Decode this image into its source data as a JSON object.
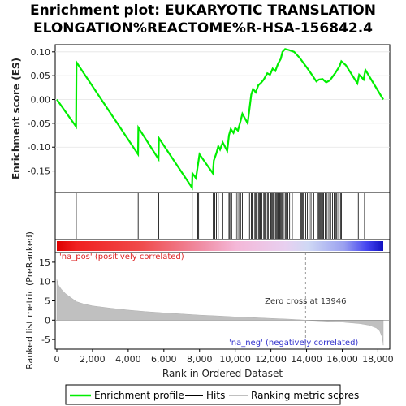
{
  "title_line1": "Enrichment plot: EUKARYOTIC TRANSLATION",
  "title_line2": "ELONGATION%REACTOME%R-HSA-156842.4",
  "chart_data": {
    "type": "line",
    "top_panel": {
      "ylabel": "Enrichment score (ES)",
      "ylim": [
        -0.195,
        0.115
      ],
      "yticks": [
        0.1,
        0.05,
        0.0,
        -0.05,
        -0.1,
        -0.15
      ],
      "ytick_labels": [
        "0.10",
        "0.05",
        "0.00",
        "-0.05",
        "-0.10",
        "-0.15"
      ],
      "series_color": "#00ee00",
      "es_curve": [
        [
          0,
          0.0
        ],
        [
          1080,
          -0.057
        ],
        [
          1100,
          0.078
        ],
        [
          4550,
          -0.115
        ],
        [
          4570,
          -0.059
        ],
        [
          5700,
          -0.125
        ],
        [
          5720,
          -0.081
        ],
        [
          7580,
          -0.185
        ],
        [
          7600,
          -0.155
        ],
        [
          7800,
          -0.165
        ],
        [
          7900,
          -0.14
        ],
        [
          8000,
          -0.115
        ],
        [
          8750,
          -0.155
        ],
        [
          8800,
          -0.128
        ],
        [
          8950,
          -0.112
        ],
        [
          9050,
          -0.098
        ],
        [
          9150,
          -0.105
        ],
        [
          9300,
          -0.09
        ],
        [
          9550,
          -0.108
        ],
        [
          9650,
          -0.075
        ],
        [
          9750,
          -0.062
        ],
        [
          9900,
          -0.07
        ],
        [
          10000,
          -0.06
        ],
        [
          10150,
          -0.065
        ],
        [
          10300,
          -0.045
        ],
        [
          10400,
          -0.03
        ],
        [
          10700,
          -0.05
        ],
        [
          10800,
          -0.02
        ],
        [
          10900,
          0.01
        ],
        [
          11000,
          0.022
        ],
        [
          11150,
          0.015
        ],
        [
          11300,
          0.03
        ],
        [
          11450,
          0.035
        ],
        [
          11600,
          0.042
        ],
        [
          11800,
          0.055
        ],
        [
          11950,
          0.052
        ],
        [
          12100,
          0.065
        ],
        [
          12250,
          0.06
        ],
        [
          12400,
          0.075
        ],
        [
          12550,
          0.085
        ],
        [
          12650,
          0.1
        ],
        [
          12800,
          0.106
        ],
        [
          13000,
          0.104
        ],
        [
          13300,
          0.1
        ],
        [
          13600,
          0.088
        ],
        [
          14000,
          0.068
        ],
        [
          14300,
          0.052
        ],
        [
          14550,
          0.038
        ],
        [
          14700,
          0.042
        ],
        [
          14900,
          0.043
        ],
        [
          15100,
          0.036
        ],
        [
          15300,
          0.04
        ],
        [
          15600,
          0.055
        ],
        [
          15850,
          0.07
        ],
        [
          15950,
          0.08
        ],
        [
          16200,
          0.072
        ],
        [
          16850,
          0.034
        ],
        [
          16950,
          0.052
        ],
        [
          17200,
          0.042
        ],
        [
          17300,
          0.062
        ],
        [
          18300,
          0.0
        ]
      ]
    },
    "hits": [
      1090,
      4560,
      5710,
      7590,
      7900,
      7950,
      8770,
      8850,
      8950,
      9050,
      9300,
      9650,
      9700,
      9800,
      10000,
      10100,
      10200,
      10300,
      10400,
      10800,
      10900,
      10950,
      11000,
      11100,
      11150,
      11200,
      11300,
      11350,
      11400,
      11500,
      11600,
      11650,
      11700,
      11800,
      11850,
      11950,
      12000,
      12050,
      12100,
      12150,
      12250,
      12300,
      12350,
      12400,
      12450,
      12500,
      12550,
      12600,
      12650,
      12700,
      12800,
      12850,
      12950,
      13050,
      13200,
      13650,
      13700,
      13750,
      13800,
      13850,
      13950,
      14050,
      14150,
      14250,
      14400,
      14650,
      14700,
      14750,
      14800,
      14850,
      14900,
      14950,
      15050,
      15150,
      15250,
      15350,
      15450,
      15550,
      15650,
      15700,
      15800,
      15900,
      15950,
      16900,
      17250
    ],
    "bottom_panel": {
      "ylabel": "Ranked list metric (PreRanked)",
      "ylim": [
        -7.5,
        17.5
      ],
      "yticks": [
        15,
        10,
        5,
        0,
        -5
      ],
      "ytick_labels": [
        "15",
        "10",
        "5",
        "0",
        "-5"
      ],
      "metric_profile": [
        [
          0,
          10.5
        ],
        [
          100,
          9.0
        ],
        [
          250,
          8.0
        ],
        [
          500,
          6.8
        ],
        [
          800,
          5.8
        ],
        [
          1100,
          4.8
        ],
        [
          1500,
          4.2
        ],
        [
          2000,
          3.7
        ],
        [
          3000,
          3.1
        ],
        [
          4000,
          2.6
        ],
        [
          5000,
          2.2
        ],
        [
          6000,
          1.9
        ],
        [
          7000,
          1.6
        ],
        [
          8000,
          1.3
        ],
        [
          9000,
          1.1
        ],
        [
          10000,
          0.85
        ],
        [
          11000,
          0.65
        ],
        [
          12000,
          0.45
        ],
        [
          13000,
          0.25
        ],
        [
          13946,
          0.0
        ],
        [
          15000,
          -0.25
        ],
        [
          16000,
          -0.5
        ],
        [
          17000,
          -0.9
        ],
        [
          17500,
          -1.3
        ],
        [
          17900,
          -2.0
        ],
        [
          18100,
          -2.8
        ],
        [
          18250,
          -4.5
        ],
        [
          18300,
          -6.5
        ]
      ],
      "fill_color": "#c0c0c0",
      "pos_label": "'na_pos' (positively correlated)",
      "neg_label": "'na_neg' (negatively correlated)",
      "zero_cross_label": "Zero cross at 13946",
      "zero_cross": 13946
    },
    "xlabel": "Rank in Ordered Dataset",
    "xlim": [
      0,
      18300
    ],
    "xticks": [
      0,
      2000,
      4000,
      6000,
      8000,
      10000,
      12000,
      14000,
      16000,
      18000
    ],
    "xtick_labels": [
      "0",
      "2,000",
      "4,000",
      "6,000",
      "8,000",
      "10,000",
      "12,000",
      "14,000",
      "16,000",
      "18,000"
    ],
    "legend": {
      "placement": "bottom",
      "entries": [
        {
          "label": "Enrichment profile",
          "color": "#00ee00"
        },
        {
          "label": "Hits",
          "color": "#000000"
        },
        {
          "label": "Ranking metric scores",
          "color": "#c0c0c0"
        }
      ]
    }
  }
}
